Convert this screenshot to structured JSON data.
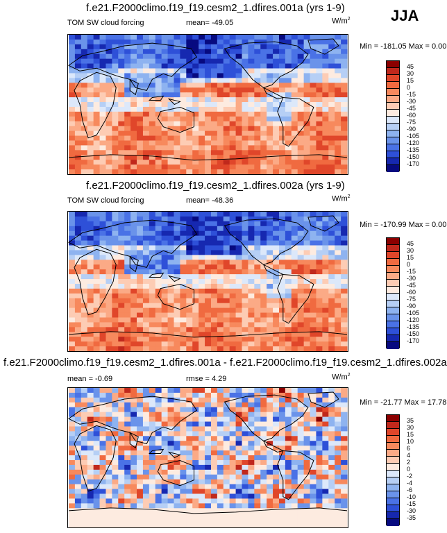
{
  "season": "JJA",
  "units": "W/m",
  "units_sup": "2",
  "chart_data": [
    {
      "type": "heatmap",
      "title": "f.e21.F2000climo.f19_f19.cesm2_1.dfires.001a (yrs 1-9)",
      "left_label": "TOM SW cloud forcing",
      "mean_label": "mean= -49.05",
      "minmax_label": "Min = -181.05 Max =   0.00",
      "min": -181.05,
      "max": 0.0,
      "mean": -49.05,
      "levels": [
        "45",
        "30",
        "15",
        "0",
        "-15",
        "-30",
        "-45",
        "-60",
        "-75",
        "-90",
        "-105",
        "-120",
        "-135",
        "-150",
        "-170"
      ],
      "colors": [
        "#8b0000",
        "#c0281c",
        "#e0462a",
        "#f06a40",
        "#f7895d",
        "#fbaa86",
        "#fdccb4",
        "#fdebe0",
        "#dce8fa",
        "#b6cff5",
        "#8eb3f0",
        "#6a93ea",
        "#4a72e6",
        "#2e50d8",
        "#1628b0",
        "#070a80"
      ]
    },
    {
      "type": "heatmap",
      "title": "f.e21.F2000climo.f19_f19.cesm2_1.dfires.002a (yrs 1-9)",
      "left_label": "TOM SW cloud forcing",
      "mean_label": "mean= -48.36",
      "minmax_label": "Min = -170.99 Max =   0.00",
      "min": -170.99,
      "max": 0.0,
      "mean": -48.36,
      "levels": [
        "45",
        "30",
        "15",
        "0",
        "-15",
        "-30",
        "-45",
        "-60",
        "-75",
        "-90",
        "-105",
        "-120",
        "-135",
        "-150",
        "-170"
      ],
      "colors": [
        "#8b0000",
        "#c0281c",
        "#e0462a",
        "#f06a40",
        "#f7895d",
        "#fbaa86",
        "#fdccb4",
        "#fdebe0",
        "#dce8fa",
        "#b6cff5",
        "#8eb3f0",
        "#6a93ea",
        "#4a72e6",
        "#2e50d8",
        "#1628b0",
        "#070a80"
      ]
    },
    {
      "type": "heatmap",
      "title": "f.e21.F2000climo.f19_f19.cesm2_1.dfires.001a - f.e21.F2000climo.f19_f19.cesm2_1.dfires.002a",
      "left_label": "mean =  -0.69",
      "rmse_label": "rmse =   4.29",
      "minmax_label": "Min = -21.77 Max =  17.78",
      "min": -21.77,
      "max": 17.78,
      "mean": -0.69,
      "rmse": 4.29,
      "levels": [
        "35",
        "30",
        "15",
        "10",
        "6",
        "4",
        "2",
        "0",
        "-2",
        "-4",
        "-6",
        "-10",
        "-15",
        "-30",
        "-35"
      ],
      "colors": [
        "#8b0000",
        "#c0281c",
        "#e0462a",
        "#f06a40",
        "#f7895d",
        "#fbaa86",
        "#fdccb4",
        "#fdebe0",
        "#dce8fa",
        "#b6cff5",
        "#8eb3f0",
        "#6a93ea",
        "#4a72e6",
        "#2e50d8",
        "#1628b0",
        "#070a80"
      ]
    }
  ]
}
